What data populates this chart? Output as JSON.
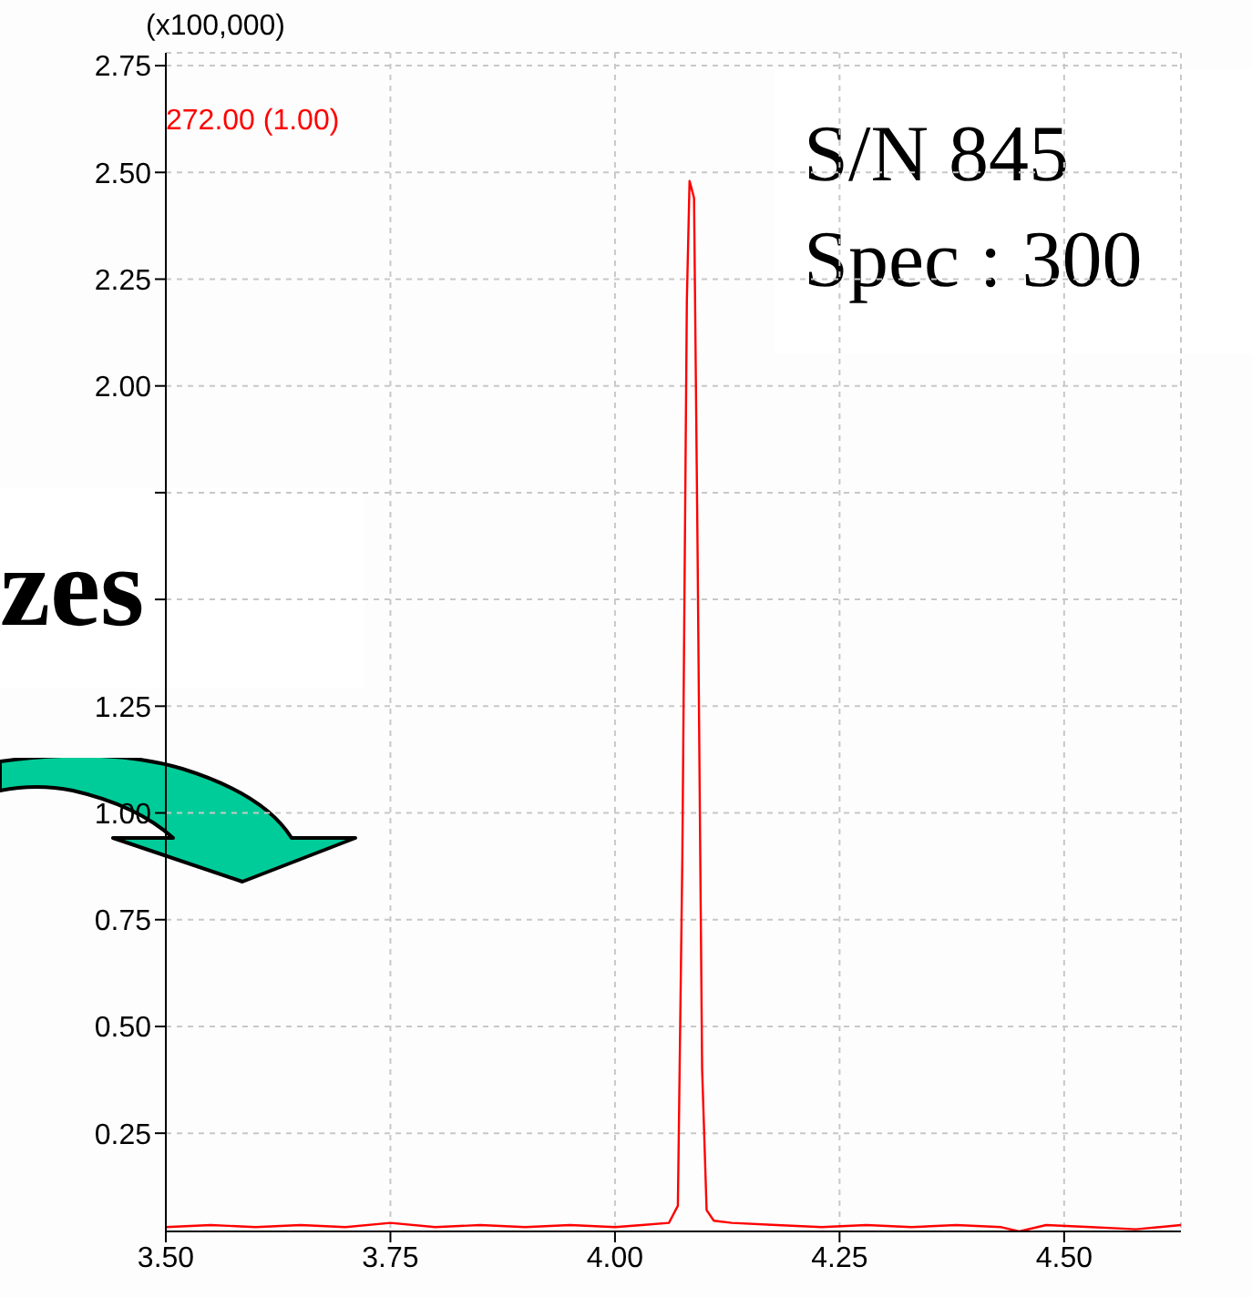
{
  "chart_data": {
    "type": "line",
    "ylabel": "(x100,000)",
    "annotations": [
      "272.00 (1.00)",
      "zes",
      "S/N 845",
      "Spec : 300"
    ],
    "x": [
      3.5,
      3.55,
      3.6,
      3.65,
      3.7,
      3.75,
      3.8,
      3.85,
      3.9,
      3.95,
      4.0,
      4.03,
      4.06,
      4.07,
      4.075,
      4.08,
      4.083,
      4.088,
      4.092,
      4.097,
      4.102,
      4.11,
      4.13,
      4.18,
      4.23,
      4.28,
      4.33,
      4.38,
      4.43,
      4.45,
      4.48,
      4.53,
      4.58,
      4.63
    ],
    "series": [
      {
        "color": "#ff0000",
        "values": [
          0.03,
          0.035,
          0.03,
          0.035,
          0.03,
          0.04,
          0.03,
          0.035,
          0.03,
          0.035,
          0.03,
          0.035,
          0.04,
          0.08,
          0.9,
          2.2,
          2.48,
          2.44,
          1.6,
          0.4,
          0.07,
          0.045,
          0.04,
          0.035,
          0.03,
          0.035,
          0.03,
          0.035,
          0.03,
          0.02,
          0.035,
          0.03,
          0.025,
          0.035
        ]
      }
    ],
    "xlim": [
      3.5,
      4.63
    ],
    "xticks": [
      {
        "value": 3.5,
        "label": "3.50"
      },
      3.75,
      {
        "value": 4.0,
        "label": "4.00"
      },
      4.25,
      {
        "value": 4.5,
        "label": "4.50"
      }
    ],
    "ylim": [
      0.02,
      2.78
    ],
    "yticks": [
      0.25,
      {
        "value": 0.5,
        "label": "0.50"
      },
      0.75,
      {
        "value": 1.0,
        "label": "1.00"
      },
      1.25,
      {
        "value": 1.5,
        "label": null
      },
      {
        "value": 1.75,
        "label": null
      },
      {
        "value": 2.0,
        "label": "2.00"
      },
      2.25,
      {
        "value": 2.5,
        "label": "2.50"
      },
      2.75
    ],
    "grid": true,
    "line_style": "solid",
    "marker": "none"
  }
}
